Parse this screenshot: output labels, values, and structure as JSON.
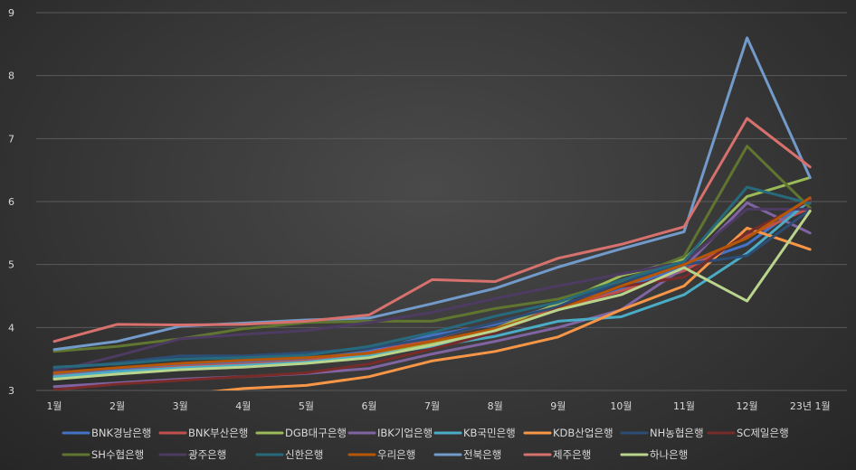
{
  "chart_data": {
    "type": "line",
    "title": "",
    "xlabel": "",
    "ylabel": "",
    "ylim": [
      3,
      9
    ],
    "yticks": [
      "3",
      "4",
      "5",
      "6",
      "7",
      "8",
      "9"
    ],
    "categories": [
      "1월",
      "2월",
      "3월",
      "4월",
      "5월",
      "6월",
      "7월",
      "8월",
      "9월",
      "10월",
      "11월",
      "12월",
      "23년 1월"
    ],
    "grid": "horizontal",
    "legend_position": "bottom",
    "series": [
      {
        "name": "BNK경남은행",
        "color": "#4472c4",
        "values": [
          3.26,
          3.32,
          3.4,
          3.44,
          3.5,
          3.62,
          3.88,
          4.05,
          4.36,
          4.62,
          4.97,
          5.32,
          6.04
        ]
      },
      {
        "name": "BNK부산은행",
        "color": "#c0504d",
        "values": [
          3.23,
          3.3,
          3.38,
          3.42,
          3.47,
          3.6,
          3.82,
          4.08,
          4.3,
          4.58,
          4.9,
          5.45,
          5.9
        ]
      },
      {
        "name": "DGB대구은행",
        "color": "#9bbb59",
        "values": [
          3.2,
          3.28,
          3.35,
          3.39,
          3.45,
          3.55,
          3.75,
          3.98,
          4.38,
          4.82,
          5.08,
          6.08,
          6.38
        ]
      },
      {
        "name": "IBK기업은행",
        "color": "#8064a2",
        "values": [
          3.06,
          3.12,
          3.18,
          3.22,
          3.27,
          3.35,
          3.58,
          3.78,
          4.0,
          4.28,
          4.95,
          5.98,
          5.5
        ]
      },
      {
        "name": "KB국민은행",
        "color": "#4bacc6",
        "values": [
          3.22,
          3.3,
          3.36,
          3.4,
          3.45,
          3.55,
          3.7,
          3.86,
          4.1,
          4.17,
          4.52,
          5.18,
          6.02
        ]
      },
      {
        "name": "KDB산업은행",
        "color": "#f79646",
        "values": [
          2.84,
          2.88,
          2.93,
          3.03,
          3.08,
          3.22,
          3.47,
          3.62,
          3.85,
          4.28,
          4.66,
          5.58,
          5.24
        ]
      },
      {
        "name": "NH농협은행",
        "color": "#2c4d75",
        "values": [
          3.34,
          3.44,
          3.55,
          3.55,
          3.6,
          3.67,
          3.83,
          4.08,
          4.33,
          4.72,
          5.0,
          5.14,
          5.87
        ]
      },
      {
        "name": "SC제일은행",
        "color": "#772c2a",
        "values": [
          3.01,
          3.1,
          3.16,
          3.22,
          3.28,
          3.42,
          3.66,
          3.92,
          4.3,
          4.65,
          4.8,
          5.5,
          6.02
        ]
      },
      {
        "name": "SH수협은행",
        "color": "#5f7530",
        "values": [
          3.62,
          3.7,
          3.82,
          3.98,
          4.08,
          4.1,
          4.1,
          4.3,
          4.45,
          4.74,
          5.13,
          6.88,
          5.9
        ]
      },
      {
        "name": "광주은행",
        "color": "#4d3b62",
        "values": [
          3.3,
          3.55,
          3.82,
          3.89,
          3.95,
          4.08,
          4.24,
          4.46,
          4.66,
          4.85,
          5.04,
          5.88,
          5.88
        ]
      },
      {
        "name": "신한은행",
        "color": "#276a7c",
        "values": [
          3.37,
          3.42,
          3.5,
          3.52,
          3.56,
          3.7,
          3.92,
          4.18,
          4.4,
          4.75,
          5.05,
          6.23,
          5.97
        ]
      },
      {
        "name": "우리은행",
        "color": "#b65708",
        "values": [
          3.28,
          3.36,
          3.43,
          3.48,
          3.52,
          3.59,
          3.78,
          3.98,
          4.28,
          4.66,
          5.0,
          5.42,
          6.06
        ]
      },
      {
        "name": "전북은행",
        "color": "#729aca",
        "values": [
          3.65,
          3.78,
          4.02,
          4.07,
          4.12,
          4.15,
          4.38,
          4.62,
          4.96,
          5.25,
          5.52,
          8.6,
          6.38
        ]
      },
      {
        "name": "제주은행",
        "color": "#d7716e",
        "values": [
          3.78,
          4.05,
          4.04,
          4.05,
          4.1,
          4.2,
          4.76,
          4.73,
          5.1,
          5.32,
          5.6,
          7.32,
          6.55
        ]
      },
      {
        "name": "하나은행",
        "color": "#b9d48c",
        "values": [
          3.18,
          3.26,
          3.33,
          3.37,
          3.43,
          3.52,
          3.72,
          3.95,
          4.28,
          4.52,
          4.95,
          4.42,
          5.85
        ]
      }
    ]
  }
}
